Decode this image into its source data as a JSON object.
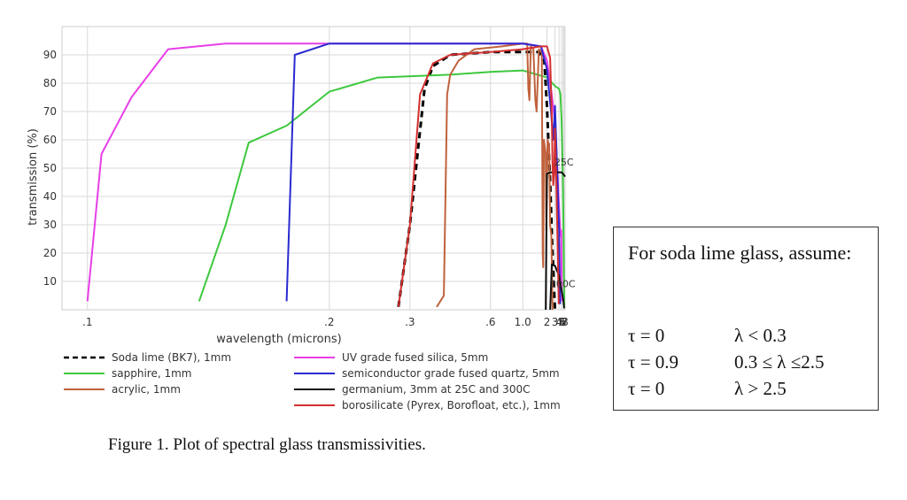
{
  "chart_data": {
    "type": "line",
    "title": "",
    "xlabel": "wavelength (microns)",
    "ylabel": "transmission (%)",
    "x_scale": "reciprocal",
    "xlim": [
      0.095,
      8
    ],
    "ylim": [
      0,
      100
    ],
    "grid": true,
    "x_ticks": [
      {
        "value": 0.1,
        "label": ".1"
      },
      {
        "value": 0.2,
        "label": ".2"
      },
      {
        "value": 0.3,
        "label": ".3"
      },
      {
        "value": 0.6,
        "label": ".6"
      },
      {
        "value": 1.0,
        "label": "1.0"
      },
      {
        "value": 2,
        "label": "2"
      },
      {
        "value": 3,
        "label": "3"
      },
      {
        "value": 4,
        "label": "4"
      },
      {
        "value": 5,
        "label": "5"
      },
      {
        "value": 6,
        "label": "6"
      },
      {
        "value": 7,
        "label": "7"
      },
      {
        "value": 8,
        "label": "8"
      }
    ],
    "y_ticks": [
      10,
      20,
      30,
      40,
      50,
      60,
      70,
      80,
      90
    ],
    "legend_position": "bottom",
    "series": [
      {
        "name": "Soda lime (BK7), 1mm",
        "color": "#000000",
        "dashed": true,
        "points": [
          [
            0.28,
            1
          ],
          [
            0.3,
            30
          ],
          [
            0.33,
            78
          ],
          [
            0.35,
            86
          ],
          [
            0.4,
            90
          ],
          [
            0.6,
            91
          ],
          [
            1.0,
            91
          ],
          [
            1.5,
            91
          ],
          [
            1.8,
            88
          ],
          [
            2.0,
            72
          ],
          [
            2.3,
            45
          ],
          [
            2.6,
            20
          ],
          [
            2.9,
            4
          ],
          [
            3.0,
            0
          ]
        ]
      },
      {
        "name": "sapphire, 1mm",
        "color": "#3ec83e",
        "points": [
          [
            0.13,
            3
          ],
          [
            0.14,
            30
          ],
          [
            0.15,
            59
          ],
          [
            0.17,
            65
          ],
          [
            0.2,
            77
          ],
          [
            0.25,
            82
          ],
          [
            0.4,
            83
          ],
          [
            0.6,
            84
          ],
          [
            1.0,
            84.5
          ],
          [
            2,
            82
          ],
          [
            3,
            79
          ],
          [
            4,
            78
          ],
          [
            4.5,
            76
          ],
          [
            5,
            68
          ],
          [
            5.5,
            55
          ],
          [
            6,
            42
          ],
          [
            6.5,
            22
          ],
          [
            7,
            1
          ]
        ]
      },
      {
        "name": "acrylic, 1mm",
        "color": "#c0623c",
        "points": [
          [
            0.36,
            1
          ],
          [
            0.38,
            5
          ],
          [
            0.39,
            76
          ],
          [
            0.4,
            83
          ],
          [
            0.43,
            88
          ],
          [
            0.5,
            92
          ],
          [
            0.7,
            93
          ],
          [
            1.0,
            94
          ],
          [
            1.1,
            94
          ],
          [
            1.13,
            78
          ],
          [
            1.16,
            74
          ],
          [
            1.2,
            93
          ],
          [
            1.28,
            92
          ],
          [
            1.35,
            74
          ],
          [
            1.4,
            70
          ],
          [
            1.5,
            92
          ],
          [
            1.65,
            91
          ],
          [
            1.7,
            20
          ],
          [
            1.73,
            15
          ],
          [
            1.78,
            60
          ],
          [
            1.9,
            55
          ],
          [
            1.95,
            28
          ],
          [
            2.05,
            60
          ],
          [
            2.2,
            58
          ],
          [
            2.3,
            30
          ],
          [
            2.45,
            26
          ],
          [
            2.6,
            0
          ]
        ]
      },
      {
        "name": "UV grade fused silica, 5mm",
        "color": "#e83ee8",
        "points": [
          [
            0.1,
            3
          ],
          [
            0.103,
            55
          ],
          [
            0.11,
            75
          ],
          [
            0.12,
            92
          ],
          [
            0.14,
            94
          ],
          [
            0.3,
            94
          ],
          [
            1.0,
            94
          ],
          [
            1.6,
            93
          ],
          [
            2.0,
            88
          ],
          [
            2.5,
            76
          ],
          [
            3.0,
            66
          ],
          [
            3.5,
            50
          ],
          [
            4.0,
            36
          ],
          [
            4.5,
            26
          ],
          [
            4.9,
            28
          ],
          [
            5.2,
            3
          ]
        ]
      },
      {
        "name": "semiconductor grade fused quartz, 5mm",
        "color": "#2a2ad0",
        "points": [
          [
            0.17,
            3
          ],
          [
            0.175,
            90
          ],
          [
            0.2,
            94
          ],
          [
            0.3,
            94
          ],
          [
            1.0,
            94
          ],
          [
            1.6,
            93
          ],
          [
            2.0,
            85
          ],
          [
            2.4,
            70
          ],
          [
            2.7,
            60
          ],
          [
            3.0,
            72
          ],
          [
            3.5,
            48
          ],
          [
            4.0,
            28
          ],
          [
            4.4,
            2
          ]
        ]
      },
      {
        "name": "germanium, 3mm at 25C and 300C",
        "color": "#111111",
        "points": [
          [
            1.9,
            0
          ],
          [
            2.0,
            48
          ],
          [
            2.3,
            48.5
          ],
          [
            3,
            48.5
          ],
          [
            4,
            48.5
          ],
          [
            5,
            48.5
          ],
          [
            6,
            48
          ],
          [
            7,
            47.5
          ],
          [
            8,
            47
          ]
        ]
      },
      {
        "name": "germanium, 3mm at 25C and 300C",
        "color": "#111111",
        "points": [
          [
            2.3,
            0
          ],
          [
            2.5,
            16
          ],
          [
            3,
            15.5
          ],
          [
            4,
            12
          ],
          [
            5,
            7
          ],
          [
            6,
            4
          ],
          [
            7,
            0.5
          ]
        ]
      },
      {
        "name": "borosilicate (Pyrex, Borofloat, etc.), 1mm",
        "color": "#d42f2f",
        "points": [
          [
            0.28,
            1
          ],
          [
            0.3,
            30
          ],
          [
            0.32,
            76
          ],
          [
            0.35,
            87
          ],
          [
            0.4,
            90
          ],
          [
            0.6,
            91
          ],
          [
            1.0,
            92
          ],
          [
            1.6,
            93
          ],
          [
            2.0,
            93
          ],
          [
            2.3,
            89
          ],
          [
            2.5,
            68
          ],
          [
            2.6,
            52
          ],
          [
            2.7,
            44
          ],
          [
            2.85,
            48
          ],
          [
            3.0,
            64
          ],
          [
            3.2,
            49
          ],
          [
            3.5,
            28
          ],
          [
            3.9,
            2
          ]
        ]
      }
    ],
    "legend": [
      {
        "label": "Soda lime (BK7), 1mm",
        "color": "#000000",
        "dashed": true,
        "column": 0,
        "row": 0
      },
      {
        "label": "sapphire, 1mm",
        "color": "#3ec83e",
        "dashed": false,
        "column": 0,
        "row": 1
      },
      {
        "label": "acrylic, 1mm",
        "color": "#c0623c",
        "dashed": false,
        "column": 0,
        "row": 2
      },
      {
        "label": "UV grade fused silica, 5mm",
        "color": "#e83ee8",
        "dashed": false,
        "column": 1,
        "row": 0
      },
      {
        "label": "semiconductor grade fused quartz, 5mm",
        "color": "#2a2ad0",
        "dashed": false,
        "column": 1,
        "row": 1
      },
      {
        "label": "germanium, 3mm at 25C and 300C",
        "color": "#111111",
        "dashed": false,
        "column": 1,
        "row": 2
      },
      {
        "label": "borosilicate (Pyrex, Borofloat, etc.), 1mm",
        "color": "#d42f2f",
        "dashed": false,
        "column": 1,
        "row": 3
      }
    ],
    "annotations": [
      {
        "text": "25C",
        "x": 6.8,
        "y": 51
      },
      {
        "text": "300C",
        "x": 5.7,
        "y": 8
      }
    ]
  },
  "caption": "Figure 1. Plot of spectral glass transmissivities.",
  "note": {
    "heading": "For soda lime glass, assume:",
    "rows": [
      {
        "tau": "τ = 0",
        "condition": "λ < 0.3"
      },
      {
        "tau": "τ = 0.9",
        "condition": "0.3 ≤ λ ≤2.5"
      },
      {
        "tau": "τ = 0",
        "condition": "λ > 2.5"
      }
    ]
  }
}
